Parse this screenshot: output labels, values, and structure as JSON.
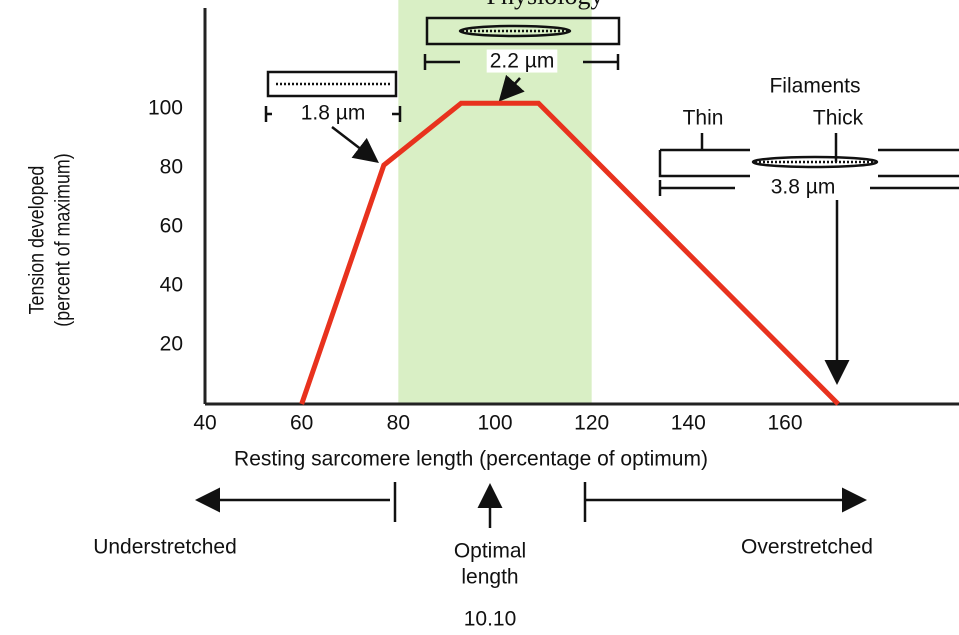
{
  "chart_data": {
    "type": "line",
    "title": "Physiology",
    "x": [
      60,
      77,
      93,
      109,
      171
    ],
    "values": [
      0,
      81,
      102,
      102,
      0
    ],
    "color": "#e8321e",
    "xlim": [
      40,
      196
    ],
    "xticks": [
      40,
      60,
      80,
      100,
      120,
      140,
      160
    ],
    "ylim": [
      0,
      137
    ],
    "yticks": [
      20,
      40,
      60,
      80,
      100
    ],
    "grid": false,
    "shaded_range": [
      80,
      120
    ],
    "shaded_color": "#d9efc5",
    "xlabel": "Resting sarcomere length (percentage of optimum)",
    "ylabel": [
      "Tension developed",
      "(percent of maximum)"
    ],
    "annotations": [
      "1.8 µm",
      "2.2 µm",
      "Filaments",
      "Thin",
      "Thick",
      "3.8 µm",
      "Understretched",
      "Optimal",
      "length",
      "Overstretched",
      "10.10"
    ]
  }
}
